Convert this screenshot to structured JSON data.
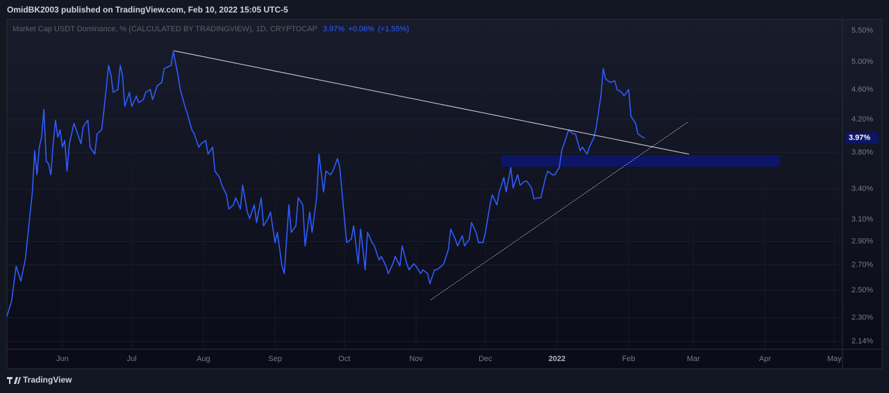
{
  "header": "OmidBK2003 published on TradingView.com, Feb 10, 2022 15:05 UTC-5",
  "footer": "TradingView",
  "chart_data": {
    "type": "line",
    "log_scale": true,
    "grid": true,
    "legend_values": [
      "3.97%",
      "+0.06%",
      "(+1.55%)"
    ],
    "series": [
      {
        "name": "Market Cap USDT Dominance, % (CALCULATED BY TRADINGVIEW), 1D, CRYPTOCAP",
        "color": "#2f5cff",
        "x": [
          -24,
          -22,
          -20,
          -18,
          -16,
          -15,
          -13,
          -12,
          -11,
          -10,
          -9,
          -8,
          -7,
          -6,
          -5,
          -4,
          -3,
          -2,
          -1,
          0,
          1,
          2,
          3,
          5,
          6,
          8,
          9,
          11,
          12,
          14,
          15,
          17,
          18,
          20,
          21,
          22,
          24,
          25,
          26,
          27,
          29,
          30,
          32,
          33,
          35,
          36,
          38,
          39,
          41,
          43,
          44,
          47,
          48,
          50,
          51,
          53,
          54,
          56,
          57,
          59,
          60,
          62,
          63,
          65,
          66,
          68,
          69,
          71,
          72,
          74,
          75,
          77,
          78,
          80,
          81,
          83,
          84,
          86,
          87,
          89,
          90,
          92,
          93,
          95,
          96,
          98,
          99,
          101,
          102,
          104,
          105,
          107,
          108,
          110,
          111,
          113,
          114,
          116,
          117,
          119,
          120,
          122,
          123,
          125,
          126,
          128,
          129,
          131,
          132,
          134,
          135,
          137,
          138,
          140,
          141,
          143,
          144,
          146,
          147,
          149,
          150,
          152,
          153,
          155,
          156,
          158,
          159,
          161,
          162,
          164,
          165,
          167,
          168,
          170,
          171,
          173,
          174,
          176,
          177,
          179,
          180,
          182,
          183,
          185,
          186,
          188,
          189,
          191,
          192,
          194,
          195,
          197,
          198,
          200,
          201,
          203,
          204,
          206,
          207,
          209,
          210,
          212,
          213,
          215,
          216,
          218,
          219,
          221,
          222,
          224,
          225,
          227,
          228,
          230,
          231,
          233,
          234,
          235,
          237,
          239,
          240,
          242,
          243,
          245,
          246,
          248,
          249,
          251,
          252
        ],
        "values": [
          2.31,
          2.42,
          2.69,
          2.57,
          2.75,
          2.95,
          3.37,
          3.82,
          3.55,
          3.86,
          3.98,
          4.33,
          3.7,
          3.67,
          3.55,
          3.9,
          4.19,
          3.98,
          4.07,
          3.86,
          3.94,
          3.59,
          3.9,
          4.15,
          4.07,
          3.9,
          4.11,
          4.19,
          3.86,
          3.78,
          4.02,
          4.07,
          4.33,
          4.95,
          4.8,
          4.56,
          4.6,
          4.95,
          4.8,
          4.37,
          4.56,
          4.37,
          4.51,
          4.42,
          4.46,
          4.56,
          4.6,
          4.46,
          4.65,
          4.7,
          4.9,
          4.95,
          5.16,
          4.8,
          4.6,
          4.37,
          4.28,
          4.07,
          4.02,
          3.86,
          3.9,
          3.94,
          3.78,
          3.86,
          3.59,
          3.52,
          3.44,
          3.34,
          3.2,
          3.24,
          3.31,
          3.2,
          3.44,
          3.17,
          3.11,
          3.24,
          3.07,
          3.31,
          3.04,
          3.11,
          3.17,
          2.89,
          2.98,
          2.69,
          2.63,
          3.24,
          2.98,
          3.04,
          3.31,
          3.24,
          2.86,
          3.17,
          2.98,
          3.31,
          3.78,
          3.37,
          3.59,
          3.55,
          3.59,
          3.73,
          3.63,
          3.11,
          2.89,
          2.92,
          3.04,
          2.71,
          3.01,
          2.66,
          2.98,
          2.89,
          2.86,
          2.74,
          2.77,
          2.69,
          2.63,
          2.71,
          2.77,
          2.69,
          2.86,
          2.71,
          2.66,
          2.71,
          2.69,
          2.63,
          2.66,
          2.63,
          2.55,
          2.66,
          2.66,
          2.69,
          2.71,
          2.83,
          3.01,
          2.92,
          2.86,
          2.95,
          2.86,
          2.92,
          3.07,
          2.98,
          2.89,
          2.89,
          2.98,
          3.24,
          3.34,
          3.24,
          3.37,
          3.52,
          3.37,
          3.63,
          3.41,
          3.55,
          3.44,
          3.48,
          3.48,
          3.41,
          3.3,
          3.31,
          3.31,
          3.52,
          3.59,
          3.55,
          3.55,
          3.63,
          3.82,
          3.98,
          4.07,
          4.02,
          4.02,
          3.82,
          3.86,
          3.78,
          3.86,
          3.98,
          4.11,
          4.51,
          4.9,
          4.75,
          4.7,
          4.72,
          4.6,
          4.56,
          4.51,
          4.6,
          4.24,
          4.15,
          4.02,
          3.98,
          3.97
        ]
      }
    ],
    "xlim": [
      -24,
      337.5
    ],
    "xticks": [
      {
        "value": 0,
        "label": "Jun"
      },
      {
        "value": 30,
        "label": "Jul"
      },
      {
        "value": 61,
        "label": "Aug"
      },
      {
        "value": 92,
        "label": "Sep"
      },
      {
        "value": 122,
        "label": "Oct"
      },
      {
        "value": 153,
        "label": "Nov"
      },
      {
        "value": 183,
        "label": "Dec"
      },
      {
        "value": 214,
        "label": "2022"
      },
      {
        "value": 245,
        "label": "Feb"
      },
      {
        "value": 273,
        "label": "Mar"
      },
      {
        "value": 304,
        "label": "Apr"
      },
      {
        "value": 334,
        "label": "May"
      }
    ],
    "ylim": [
      2.09,
      5.69
    ],
    "yticks": [
      {
        "value": 2.14,
        "label": "2.14%"
      },
      {
        "value": 2.3,
        "label": "2.30%"
      },
      {
        "value": 2.5,
        "label": "2.50%"
      },
      {
        "value": 2.7,
        "label": "2.70%"
      },
      {
        "value": 2.9,
        "label": "2.90%"
      },
      {
        "value": 3.1,
        "label": "3.10%"
      },
      {
        "value": 3.4,
        "label": "3.40%"
      },
      {
        "value": 3.8,
        "label": "3.80%"
      },
      {
        "value": 4.2,
        "label": "4.20%"
      },
      {
        "value": 4.6,
        "label": "4.60%"
      },
      {
        "value": 5.0,
        "label": "5.00%"
      },
      {
        "value": 5.5,
        "label": "5.50%"
      }
    ]
  }
}
